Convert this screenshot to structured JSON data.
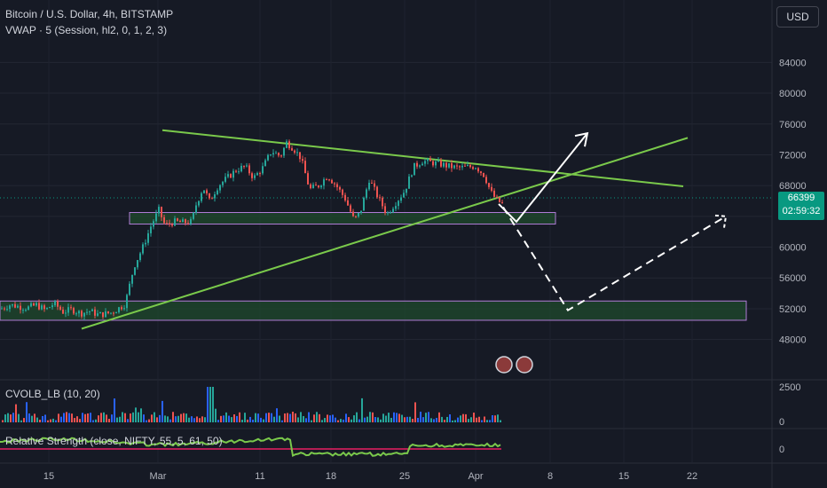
{
  "header": {
    "title": "Bitcoin / U.S. Dollar, 4h, BITSTAMP",
    "indicator": "VWAP · 5 (Session, hl2, 0, 1, 2, 3)",
    "currency_button": "USD"
  },
  "price_tag": {
    "price": "66399",
    "countdown": "02:59:32",
    "color": "#089981"
  },
  "panes": {
    "cvol_label": "CVOLB_LB (10, 20)",
    "rs_label": "Relative Strength (close, NIFTY, 55, 5, 61, 50)"
  },
  "colors": {
    "up": "#26a69a",
    "down": "#ef5350",
    "bg": "#161a25",
    "trend_green": "#7ac94b",
    "zone_fill": "#1f4a2c",
    "zone_border": "#b07cd6"
  },
  "chart_data": {
    "type": "candlestick",
    "title": "Bitcoin / U.S. Dollar, 4h, BITSTAMP",
    "y_ticks": [
      84000,
      80000,
      76000,
      72000,
      68000,
      64000,
      60000,
      56000,
      52000,
      48000
    ],
    "x_ticks": [
      "15",
      "Mar",
      "11",
      "18",
      "25",
      "Apr",
      "8",
      "15",
      "22"
    ],
    "volume_ticks": [
      2500,
      0
    ],
    "rs_ticks": [
      0
    ],
    "ylim": [
      44500,
      87500
    ],
    "last_price": 66399,
    "series": [
      {
        "name": "close",
        "points": [
          [
            0,
            52000
          ],
          [
            10,
            52500
          ],
          [
            20,
            52300
          ],
          [
            30,
            52100
          ],
          [
            40,
            52500
          ],
          [
            50,
            51800
          ],
          [
            60,
            52700
          ],
          [
            70,
            51600
          ],
          [
            80,
            51900
          ],
          [
            90,
            51400
          ],
          [
            100,
            51700
          ],
          [
            110,
            51200
          ],
          [
            125,
            51500
          ],
          [
            140,
            52600
          ],
          [
            150,
            57500
          ],
          [
            160,
            60000
          ],
          [
            170,
            63000
          ],
          [
            178,
            64800
          ],
          [
            185,
            62800
          ],
          [
            195,
            63300
          ],
          [
            205,
            63200
          ],
          [
            215,
            63300
          ],
          [
            220,
            65500
          ],
          [
            228,
            67800
          ],
          [
            235,
            66000
          ],
          [
            245,
            68000
          ],
          [
            255,
            69000
          ],
          [
            265,
            70000
          ],
          [
            275,
            70500
          ],
          [
            285,
            69000
          ],
          [
            295,
            70300
          ],
          [
            305,
            72500
          ],
          [
            315,
            71800
          ],
          [
            322,
            73600
          ],
          [
            330,
            72800
          ],
          [
            338,
            71600
          ],
          [
            348,
            67500
          ],
          [
            358,
            68000
          ],
          [
            368,
            69300
          ],
          [
            378,
            68000
          ],
          [
            388,
            66300
          ],
          [
            398,
            63500
          ],
          [
            405,
            64500
          ],
          [
            415,
            68800
          ],
          [
            425,
            66500
          ],
          [
            435,
            64300
          ],
          [
            445,
            65800
          ],
          [
            455,
            67300
          ],
          [
            465,
            70400
          ],
          [
            475,
            71200
          ],
          [
            485,
            71000
          ],
          [
            495,
            70800
          ],
          [
            505,
            70500
          ],
          [
            515,
            70300
          ],
          [
            525,
            70400
          ],
          [
            535,
            70500
          ],
          [
            545,
            69300
          ],
          [
            552,
            67200
          ],
          [
            558,
            66200
          ],
          [
            565,
            65600
          ]
        ]
      }
    ],
    "annotations": {
      "down_trendline": [
        [
          183,
          75200
        ],
        [
          770,
          67900
        ]
      ],
      "up_trendline": [
        [
          92,
          49400
        ],
        [
          775,
          74200
        ]
      ],
      "zones": [
        {
          "x": [
            146,
            626
          ],
          "y": [
            63000,
            64500
          ]
        },
        {
          "x": [
            0,
            841
          ],
          "y": [
            50500,
            53000
          ]
        }
      ],
      "bull_path": [
        [
          562,
          65600
        ],
        [
          582,
          63300
        ],
        [
          662,
          74800
        ]
      ],
      "bear_path": [
        [
          567,
          65200
        ],
        [
          640,
          51800
        ],
        [
          818,
          64000
        ]
      ]
    }
  }
}
